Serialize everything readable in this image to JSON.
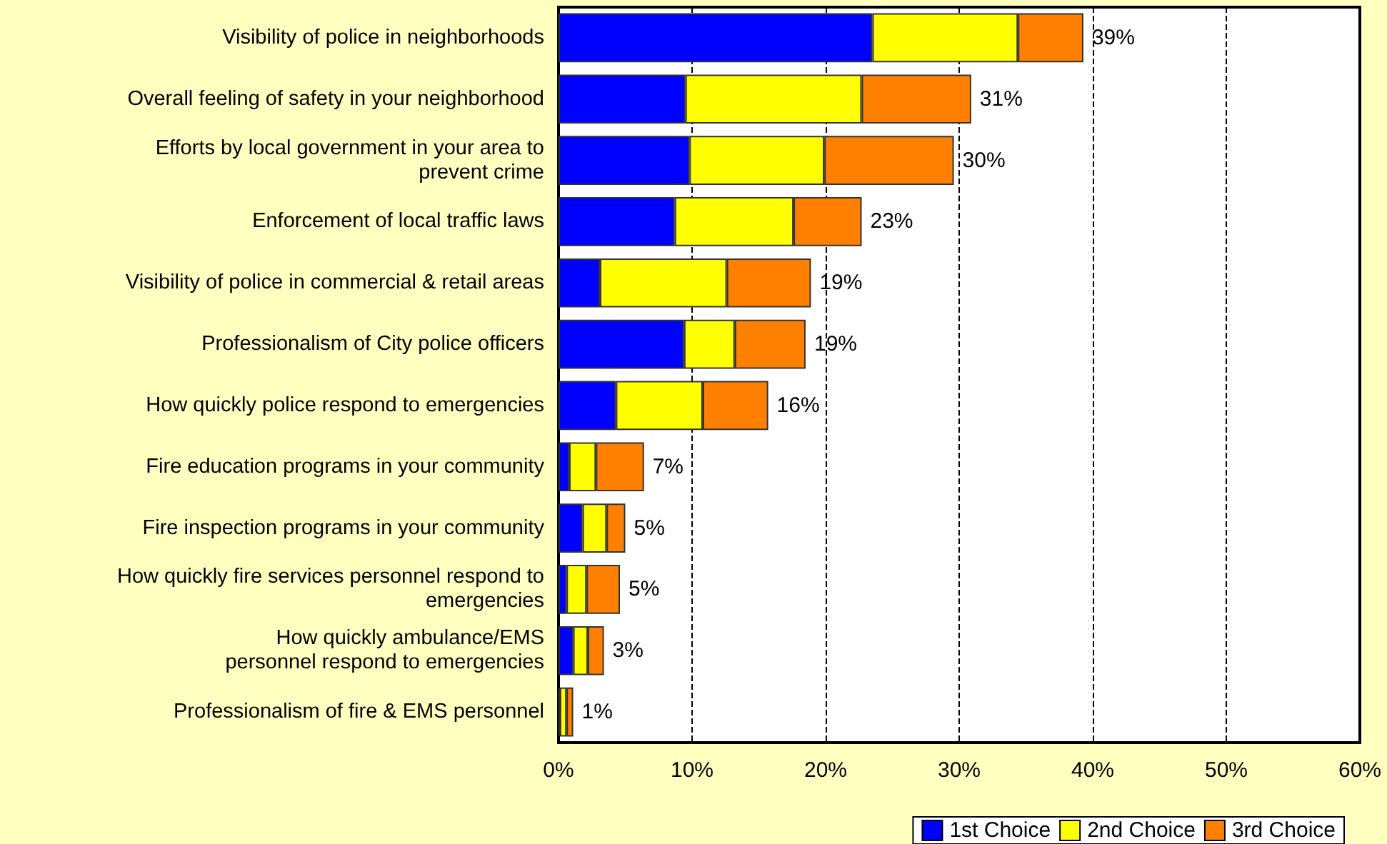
{
  "chart_data": {
    "type": "bar",
    "orientation": "horizontal",
    "stacked": true,
    "categories": [
      "Visibility of police in neighborhoods",
      "Overall feeling of safety in your neighborhood",
      "Efforts by local government in your area to\nprevent crime",
      "Enforcement of local traffic laws",
      "Visibility of police in commercial & retail areas",
      "Professionalism of City police officers",
      "How quickly police respond to emergencies",
      "Fire education programs in your community",
      "Fire inspection programs in your community",
      "How quickly fire services personnel respond to\nemergencies",
      "How quickly ambulance/EMS\npersonnel respond to emergencies",
      "Professionalism of fire & EMS personnel"
    ],
    "series": [
      {
        "name": "1st Choice",
        "color": "#0000ff",
        "values": [
          23.5,
          9.5,
          9.8,
          8.7,
          3.1,
          9.4,
          4.3,
          0.8,
          1.8,
          0.6,
          1.1,
          0.1
        ]
      },
      {
        "name": "2nd Choice",
        "color": "#ffff00",
        "values": [
          10.9,
          13.2,
          10.1,
          8.9,
          9.5,
          3.8,
          6.5,
          2.0,
          1.8,
          1.5,
          1.1,
          0.5
        ]
      },
      {
        "name": "3rd Choice",
        "color": "#ff8000",
        "values": [
          4.9,
          8.2,
          9.7,
          5.1,
          6.3,
          5.3,
          4.9,
          3.6,
          1.4,
          2.5,
          1.2,
          0.5
        ]
      }
    ],
    "totals": [
      "39%",
      "31%",
      "30%",
      "23%",
      "19%",
      "19%",
      "16%",
      "7%",
      "5%",
      "5%",
      "3%",
      "1%"
    ],
    "xlim": [
      0,
      60
    ],
    "xticks": [
      {
        "value": 0,
        "label": "0%"
      },
      {
        "value": 10,
        "label": "10%"
      },
      {
        "value": 20,
        "label": "20%"
      },
      {
        "value": 30,
        "label": "30%"
      },
      {
        "value": 40,
        "label": "40%"
      },
      {
        "value": 50,
        "label": "50%"
      },
      {
        "value": 60,
        "label": "60%"
      }
    ],
    "grid": "x",
    "legend": "bottom right"
  }
}
